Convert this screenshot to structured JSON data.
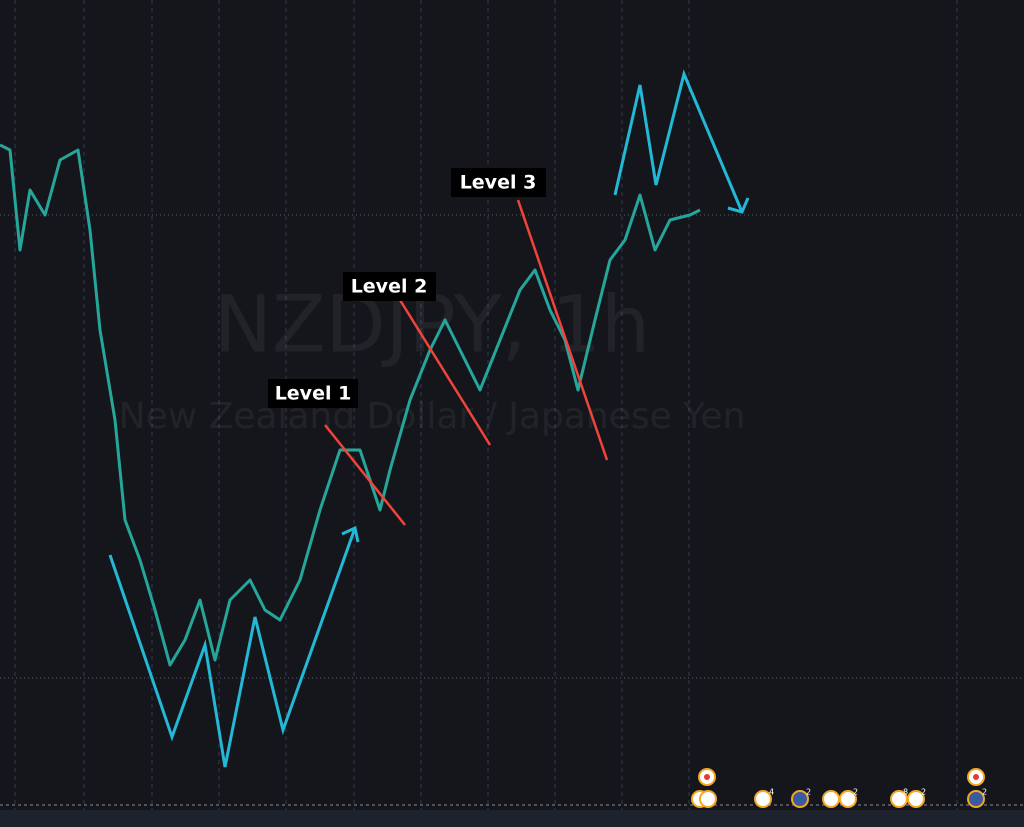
{
  "watermark": {
    "symbol": "NZDJPY, 1h",
    "description": "New Zealand Dollar / Japanese Yen"
  },
  "annotations": [
    "Level 1",
    "Level 2",
    "Level 3"
  ],
  "event_badges": [
    "4",
    "2",
    "2",
    "8",
    "2",
    "2"
  ]
}
